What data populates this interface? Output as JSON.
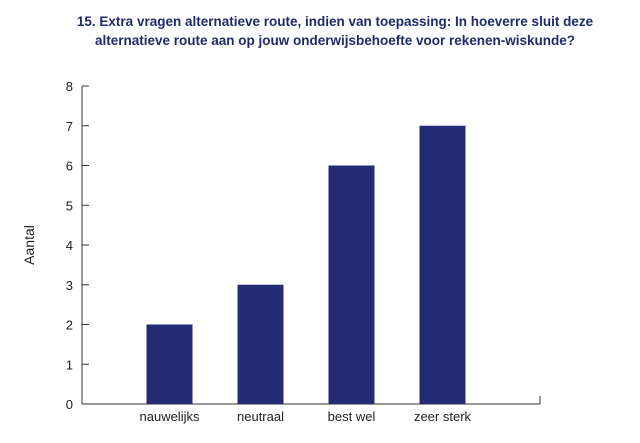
{
  "chart_data": {
    "type": "bar",
    "title_lines": [
      "15. Extra vragen alternatieve route, indien van toepassing: In hoeverre sluit deze",
      "alternatieve route aan op jouw onderwijsbehoefte voor rekenen-wiskunde?"
    ],
    "xlabel": "",
    "ylabel": "Aantal",
    "categories": [
      "nauwelijks",
      "neutraal",
      "best wel",
      "zeer sterk"
    ],
    "values": [
      2,
      3,
      6,
      7
    ],
    "ylim": [
      0,
      8
    ],
    "yticks": [
      0,
      1,
      2,
      3,
      4,
      5,
      6,
      7,
      8
    ],
    "grid": false,
    "bar_color": "#232b75",
    "axis_color": "#333333"
  }
}
